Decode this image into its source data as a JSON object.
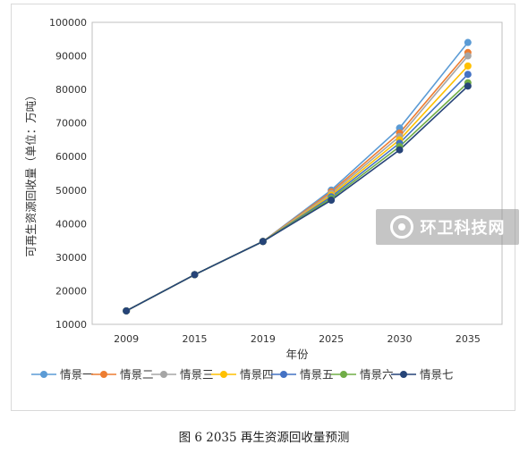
{
  "chart_data": {
    "type": "line",
    "categories": [
      "2009",
      "2015",
      "2019",
      "2025",
      "2030",
      "2035"
    ],
    "xlabel": "年份",
    "ylabel": "可再生资源回收量（单位：万吨）",
    "ylim": [
      10000,
      100000
    ],
    "y_ticks": [
      "10000",
      "20000",
      "30000",
      "40000",
      "50000",
      "60000",
      "70000",
      "80000",
      "90000",
      "100000"
    ],
    "grid": false,
    "legend_position": "bottom",
    "series": [
      {
        "name": "情景一",
        "color": "#5B9BD5",
        "values": [
          14000,
          24800,
          34700,
          50000,
          68500,
          94000
        ]
      },
      {
        "name": "情景二",
        "color": "#ED7D31",
        "values": [
          14000,
          24800,
          34700,
          49500,
          67000,
          91000
        ]
      },
      {
        "name": "情景三",
        "color": "#A5A5A5",
        "values": [
          14000,
          24800,
          34700,
          49000,
          66000,
          90000
        ]
      },
      {
        "name": "情景四",
        "color": "#FFC000",
        "values": [
          14000,
          24800,
          34700,
          48500,
          65000,
          87000
        ]
      },
      {
        "name": "情景五",
        "color": "#4472C4",
        "values": [
          14000,
          24800,
          34700,
          48000,
          64000,
          84500
        ]
      },
      {
        "name": "情景六",
        "color": "#70AD47",
        "values": [
          14000,
          24800,
          34700,
          47500,
          63000,
          82000
        ]
      },
      {
        "name": "情景七",
        "color": "#264478",
        "values": [
          14000,
          24800,
          34700,
          47000,
          62000,
          81000
        ]
      }
    ]
  },
  "caption": "图 6 2035 再生资源回收量预测",
  "watermark": {
    "text": "环卫科技网"
  }
}
